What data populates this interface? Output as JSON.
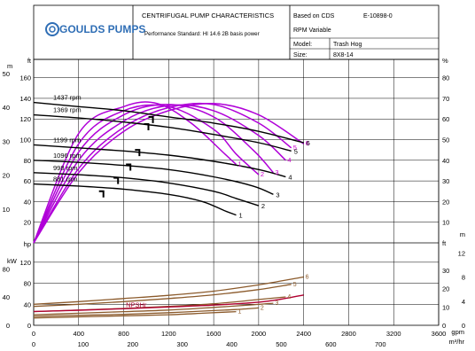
{
  "header": {
    "logo_text": "GOULDS PUMPS",
    "title": "CENTRIFUGAL PUMP CHARACTERISTICS",
    "standard": "Performance Standard: HI 14.6 2B basis power",
    "based_on_label": "Based on CDS",
    "based_on_value": "E-10898-0",
    "rpm_mode": "RPM Variable",
    "model_label": "Model:",
    "model_value": "Trash Hog",
    "size_label": "Size:",
    "size_value": "8X8-14"
  },
  "chart_data": {
    "type": "line",
    "x_axis": {
      "unit_lines": [
        "gpm",
        "m³/hr"
      ],
      "gpm_ticks": [
        "0",
        "400",
        "800",
        "1200",
        "1600",
        "2000",
        "2400",
        "2800",
        "3200",
        "3600"
      ],
      "m3hr_ticks": [
        "0",
        "100",
        "200",
        "300",
        "400",
        "500",
        "600",
        "700"
      ],
      "range_gpm": [
        0,
        3600
      ]
    },
    "head_axis": {
      "left_units": [
        "m",
        "ft"
      ],
      "right_unit": "%",
      "ft_range": [
        0,
        170
      ],
      "ft_ticks": [
        "20",
        "40",
        "60",
        "80",
        "100",
        "120",
        "140",
        "160"
      ],
      "m_ticks": [
        "10",
        "20",
        "30",
        "40",
        "50"
      ],
      "pct_ticks": [
        "10",
        "20",
        "30",
        "40",
        "50",
        "60",
        "70",
        "80"
      ]
    },
    "npsh_axis": {
      "right_units": [
        "ft",
        "m"
      ],
      "ft_range": [
        0,
        40
      ],
      "ft_ticks": [
        "0",
        "10",
        "20",
        "30"
      ],
      "m_ticks": [
        "0",
        "4",
        "8",
        "12"
      ]
    },
    "power_axis": {
      "left_units": [
        "hp",
        "kW"
      ],
      "hp_range": [
        0,
        140
      ],
      "hp_ticks": [
        "0",
        "40",
        "80",
        "120"
      ],
      "kw_ticks": [
        "0",
        "40",
        "80"
      ]
    },
    "series": [
      {
        "name": "1437 rpm",
        "id": "6",
        "head_ft": [
          [
            0,
            136
          ],
          [
            400,
            132
          ],
          [
            800,
            128
          ],
          [
            1200,
            122
          ],
          [
            1600,
            116
          ],
          [
            2000,
            108
          ],
          [
            2400,
            97
          ]
        ],
        "eff_pct": [
          [
            0,
            0
          ],
          [
            400,
            34
          ],
          [
            800,
            54
          ],
          [
            1200,
            64
          ],
          [
            1600,
            67.5
          ],
          [
            2000,
            62
          ],
          [
            2400,
            48
          ]
        ],
        "power_hp": [
          [
            0,
            40
          ],
          [
            400,
            45
          ],
          [
            800,
            51
          ],
          [
            1200,
            57
          ],
          [
            1600,
            65
          ],
          [
            2000,
            77
          ],
          [
            2400,
            92
          ]
        ]
      },
      {
        "name": "1369 rpm",
        "id": "5",
        "head_ft": [
          [
            0,
            124
          ],
          [
            400,
            121
          ],
          [
            800,
            117
          ],
          [
            1200,
            112
          ],
          [
            1600,
            105
          ],
          [
            2000,
            97
          ],
          [
            2290,
            89
          ]
        ],
        "eff_pct": [
          [
            0,
            0
          ],
          [
            400,
            36
          ],
          [
            800,
            56
          ],
          [
            1200,
            65.5
          ],
          [
            1600,
            67
          ],
          [
            2000,
            58
          ],
          [
            2290,
            46
          ]
        ],
        "power_hp": [
          [
            0,
            36
          ],
          [
            400,
            40
          ],
          [
            800,
            45
          ],
          [
            1200,
            51
          ],
          [
            1600,
            58
          ],
          [
            2000,
            68
          ],
          [
            2290,
            78
          ]
        ]
      },
      {
        "name": "1199 rpm",
        "id": "4",
        "head_ft": [
          [
            0,
            95
          ],
          [
            400,
            92
          ],
          [
            800,
            89
          ],
          [
            1200,
            85
          ],
          [
            1600,
            79
          ],
          [
            2000,
            71
          ],
          [
            2240,
            64
          ]
        ],
        "eff_pct": [
          [
            0,
            0
          ],
          [
            400,
            40
          ],
          [
            800,
            59
          ],
          [
            1200,
            66.5
          ],
          [
            1600,
            64
          ],
          [
            2000,
            52
          ],
          [
            2240,
            40
          ]
        ],
        "power_hp": [
          [
            0,
            26
          ],
          [
            400,
            29
          ],
          [
            800,
            32
          ],
          [
            1200,
            36
          ],
          [
            1600,
            41
          ],
          [
            2000,
            49
          ],
          [
            2240,
            54
          ]
        ]
      },
      {
        "name": "1096 rpm",
        "id": "3",
        "head_ft": [
          [
            0,
            80
          ],
          [
            400,
            78
          ],
          [
            800,
            75
          ],
          [
            1200,
            71
          ],
          [
            1600,
            64
          ],
          [
            1950,
            55
          ],
          [
            2130,
            47
          ]
        ],
        "eff_pct": [
          [
            0,
            0
          ],
          [
            400,
            44
          ],
          [
            800,
            62
          ],
          [
            1200,
            67
          ],
          [
            1600,
            61
          ],
          [
            1950,
            45
          ],
          [
            2130,
            34
          ]
        ],
        "power_hp": [
          [
            0,
            20
          ],
          [
            400,
            23
          ],
          [
            800,
            26
          ],
          [
            1200,
            29
          ],
          [
            1600,
            34
          ],
          [
            1950,
            39
          ],
          [
            2130,
            42
          ]
        ]
      },
      {
        "name": "998 rpm",
        "id": "2",
        "head_ft": [
          [
            0,
            68
          ],
          [
            400,
            66
          ],
          [
            800,
            63
          ],
          [
            1200,
            58
          ],
          [
            1600,
            50
          ],
          [
            1800,
            43
          ],
          [
            2000,
            36
          ]
        ],
        "eff_pct": [
          [
            0,
            0
          ],
          [
            400,
            48
          ],
          [
            800,
            64
          ],
          [
            1200,
            66
          ],
          [
            1600,
            55
          ],
          [
            1800,
            43
          ],
          [
            2000,
            33
          ]
        ],
        "power_hp": [
          [
            0,
            17
          ],
          [
            400,
            19
          ],
          [
            800,
            21
          ],
          [
            1200,
            24
          ],
          [
            1600,
            28
          ],
          [
            1800,
            30
          ],
          [
            2000,
            33
          ]
        ]
      },
      {
        "name": "881 rpm",
        "id": "1",
        "head_ft": [
          [
            0,
            57
          ],
          [
            400,
            55
          ],
          [
            800,
            52
          ],
          [
            1200,
            47
          ],
          [
            1500,
            40
          ],
          [
            1700,
            31
          ],
          [
            1800,
            27
          ]
        ],
        "eff_pct": [
          [
            0,
            0
          ],
          [
            400,
            53
          ],
          [
            800,
            66
          ],
          [
            1100,
            67.5
          ],
          [
            1400,
            58
          ],
          [
            1700,
            43
          ],
          [
            1800,
            38
          ]
        ],
        "power_hp": [
          [
            0,
            14
          ],
          [
            400,
            16
          ],
          [
            800,
            18
          ],
          [
            1200,
            20
          ],
          [
            1500,
            23
          ],
          [
            1700,
            25
          ],
          [
            1800,
            26
          ]
        ]
      }
    ],
    "npsh": {
      "label": "NPSHr",
      "points_ft": [
        [
          0,
          7.5
        ],
        [
          400,
          8.2
        ],
        [
          800,
          9
        ],
        [
          1200,
          10
        ],
        [
          1600,
          11
        ],
        [
          2000,
          12.6
        ],
        [
          2200,
          14.2
        ],
        [
          2400,
          16.5
        ]
      ]
    },
    "bep_markers": [
      {
        "x_gpm": 620,
        "head_ft": 50
      },
      {
        "x_gpm": 750,
        "head_ft": 63
      },
      {
        "x_gpm": 860,
        "head_ft": 76
      },
      {
        "x_gpm": 940,
        "head_ft": 90
      },
      {
        "x_gpm": 1020,
        "head_ft": 115
      },
      {
        "x_gpm": 1060,
        "head_ft": 122
      }
    ],
    "grid": true,
    "colors": {
      "head": "#000000",
      "efficiency": "#b000d8",
      "efficiency_label": "#cc00cc",
      "power": "#8b5a2b",
      "npsh": "#b00030",
      "grid": "#000000"
    }
  }
}
